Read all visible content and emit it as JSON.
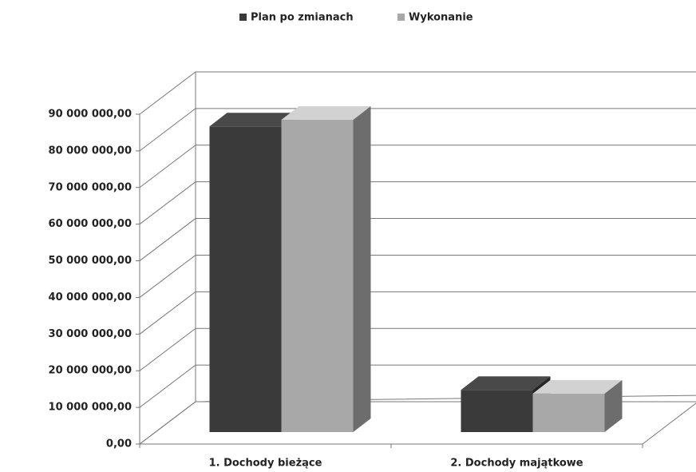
{
  "chart_data": {
    "type": "bar3d",
    "categories": [
      "1. Dochody bieżące",
      "2. Dochody majątkowe"
    ],
    "series": [
      {
        "name": "Plan po zmianach",
        "color": "#3a3a3a",
        "values": [
          83400000,
          11500000
        ]
      },
      {
        "name": "Wykonanie",
        "color": "#a8a8a8",
        "values": [
          85200000,
          10500000
        ]
      }
    ],
    "ylim": [
      0,
      90000000
    ],
    "yticks": [
      {
        "value": 0,
        "label": "0,00"
      },
      {
        "value": 10000000,
        "label": "10 000 000,00"
      },
      {
        "value": 20000000,
        "label": "20 000 000,00"
      },
      {
        "value": 30000000,
        "label": "30 000 000,00"
      },
      {
        "value": 40000000,
        "label": "40 000 000,00"
      },
      {
        "value": 50000000,
        "label": "50 000 000,00"
      },
      {
        "value": 60000000,
        "label": "60 000 000,00"
      },
      {
        "value": 70000000,
        "label": "70 000 000,00"
      },
      {
        "value": 80000000,
        "label": "80 000 000,00"
      },
      {
        "value": 90000000,
        "label": "90 000 000,00"
      }
    ],
    "grid": true,
    "legend": "top"
  }
}
